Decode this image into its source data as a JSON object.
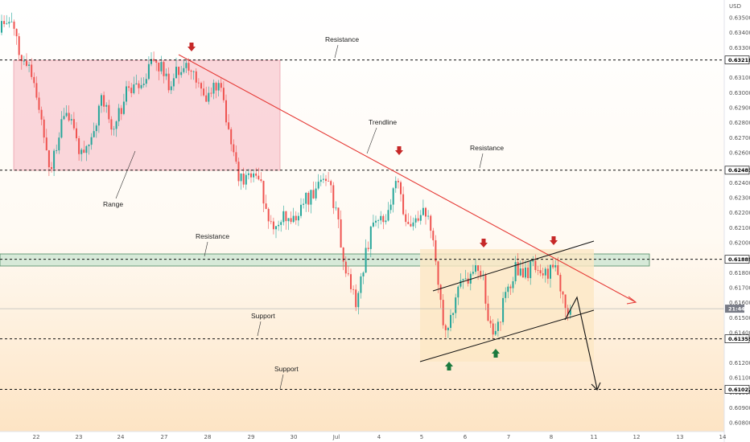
{
  "chart_data": {
    "type": "candlestick",
    "currency": "USD",
    "y_ticks": [
      "0.63500",
      "0.63400",
      "0.63300",
      "0.63100",
      "0.63000",
      "0.62900",
      "0.62800",
      "0.62700",
      "0.62600",
      "0.62400",
      "0.62300",
      "0.62200",
      "0.62100",
      "0.62000",
      "0.61800",
      "0.61700",
      "0.61600",
      "0.61500",
      "0.61400",
      "0.61200",
      "0.61100",
      "0.61000",
      "0.60900",
      "0.60800"
    ],
    "ylim": [
      0.6076,
      0.6359
    ],
    "x_labels": [
      "22",
      "23",
      "24",
      "27",
      "28",
      "29",
      "30",
      "Jul",
      "4",
      "5",
      "6",
      "7",
      "8",
      "11",
      "12",
      "13",
      "14"
    ],
    "levels": [
      {
        "name": "resistance-1",
        "value": 0.63218,
        "label": "0.63218"
      },
      {
        "name": "resistance-2",
        "value": 0.62483,
        "label": "0.62483"
      },
      {
        "name": "resistance-zone",
        "value": 0.61889,
        "label": "0.61889"
      },
      {
        "name": "support-1",
        "value": 0.61359,
        "label": "0.61359"
      },
      {
        "name": "support-2",
        "value": 0.61022,
        "label": "0.61022"
      }
    ],
    "current_tag": {
      "label": "21:44",
      "value": 0.6156
    },
    "annotations": [
      {
        "name": "resistance-label-1",
        "text": "Resistance"
      },
      {
        "name": "trendline-label",
        "text": "Trendline"
      },
      {
        "name": "resistance-label-2",
        "text": "Resistance"
      },
      {
        "name": "range-label",
        "text": "Range"
      },
      {
        "name": "resistance-label-3",
        "text": "Resistance"
      },
      {
        "name": "support-label-1",
        "text": "Support"
      },
      {
        "name": "support-label-2",
        "text": "Support"
      }
    ],
    "colors": {
      "up": "#26a69a",
      "down": "#ef5350",
      "range_box": "#f8c9d0",
      "zone": "#cfe6d4",
      "channel": "#fde7c4",
      "trend": "#e53935",
      "arrow_down": "#c62828",
      "arrow_up": "#1b7a3e"
    }
  }
}
